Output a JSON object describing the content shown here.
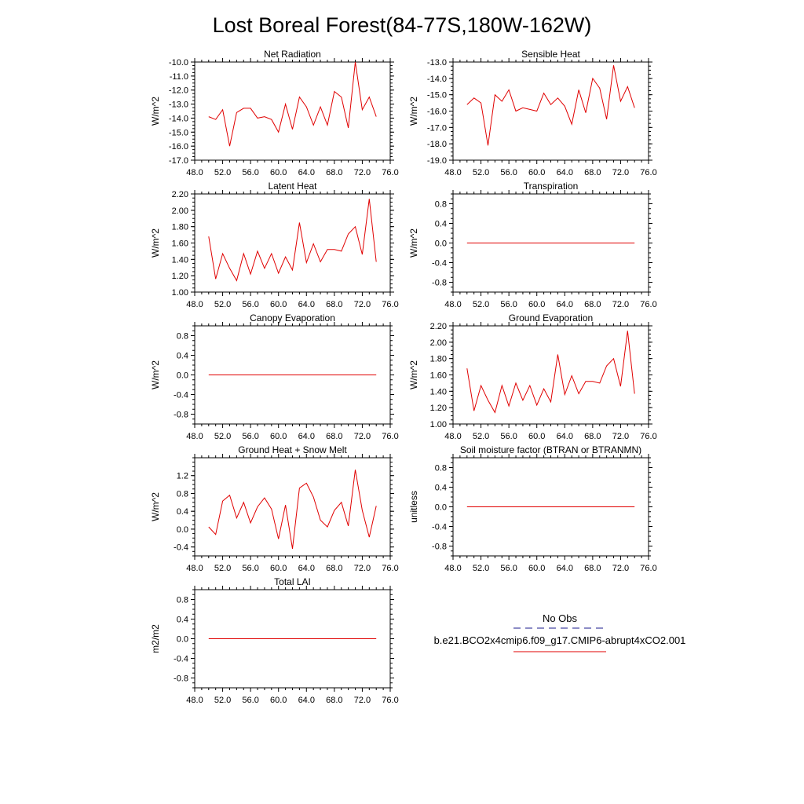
{
  "figure_title": "Lost Boreal Forest(84-77S,180W-162W)",
  "legend": {
    "obs_label": "No Obs",
    "obs_color": "#1a1a8c",
    "model_label": "b.e21.BCO2x4cmip6.f09_g17.CMIP6-abrupt4xCO2.001",
    "model_color": "#e00000"
  },
  "chart_data": [
    {
      "type": "line",
      "title": "Net Radiation",
      "ylabel": "W/m^2",
      "xlim": [
        48,
        76
      ],
      "ylim": [
        -17,
        -10
      ],
      "xticks": [
        48,
        52,
        56,
        60,
        64,
        68,
        72,
        76
      ],
      "xtick_labels": [
        "48.0",
        "52.0",
        "56.0",
        "60.0",
        "64.0",
        "68.0",
        "72.0",
        "76.0"
      ],
      "yticks": [
        -17,
        -16,
        -15,
        -14,
        -13,
        -12,
        -11,
        -10
      ],
      "ytick_labels": [
        "-17.0",
        "-16.0",
        "-15.0",
        "-14.0",
        "-13.0",
        "-12.0",
        "-11.0",
        "-10.0"
      ],
      "x": [
        50,
        51,
        52,
        53,
        54,
        55,
        56,
        57,
        58,
        59,
        60,
        61,
        62,
        63,
        64,
        65,
        66,
        67,
        68,
        69,
        70,
        71,
        72,
        73,
        74
      ],
      "series": [
        {
          "name": "b.e21.BCO2x4cmip6.f09_g17.CMIP6-abrupt4xCO2.001",
          "color": "#e00000",
          "values": [
            -13.9,
            -14.1,
            -13.4,
            -16.0,
            -13.6,
            -13.3,
            -13.3,
            -14.0,
            -13.9,
            -14.1,
            -15.0,
            -13.0,
            -14.8,
            -12.5,
            -13.2,
            -14.5,
            -13.2,
            -14.5,
            -12.1,
            -12.5,
            -14.7,
            -10.0,
            -13.4,
            -12.5,
            -13.9
          ]
        }
      ]
    },
    {
      "type": "line",
      "title": "Sensible Heat",
      "ylabel": "W/m^2",
      "xlim": [
        48,
        76
      ],
      "ylim": [
        -19,
        -13
      ],
      "xticks": [
        48,
        52,
        56,
        60,
        64,
        68,
        72,
        76
      ],
      "xtick_labels": [
        "48.0",
        "52.0",
        "56.0",
        "60.0",
        "64.0",
        "68.0",
        "72.0",
        "76.0"
      ],
      "yticks": [
        -19,
        -18,
        -17,
        -16,
        -15,
        -14,
        -13
      ],
      "ytick_labels": [
        "-19.0",
        "-18.0",
        "-17.0",
        "-16.0",
        "-15.0",
        "-14.0",
        "-13.0"
      ],
      "x": [
        50,
        51,
        52,
        53,
        54,
        55,
        56,
        57,
        58,
        59,
        60,
        61,
        62,
        63,
        64,
        65,
        66,
        67,
        68,
        69,
        70,
        71,
        72,
        73,
        74
      ],
      "series": [
        {
          "name": "b.e21.BCO2x4cmip6.f09_g17.CMIP6-abrupt4xCO2.001",
          "color": "#e00000",
          "values": [
            -15.6,
            -15.2,
            -15.5,
            -18.1,
            -15.0,
            -15.4,
            -14.7,
            -16.0,
            -15.8,
            -15.9,
            -16.0,
            -14.9,
            -15.6,
            -15.2,
            -15.7,
            -16.8,
            -14.7,
            -16.1,
            -14.0,
            -14.6,
            -16.5,
            -13.2,
            -15.4,
            -14.5,
            -15.8
          ]
        }
      ]
    },
    {
      "type": "line",
      "title": "Latent Heat",
      "ylabel": "W/m^2",
      "xlim": [
        48,
        76
      ],
      "ylim": [
        1.0,
        2.2
      ],
      "xticks": [
        48,
        52,
        56,
        60,
        64,
        68,
        72,
        76
      ],
      "xtick_labels": [
        "48.0",
        "52.0",
        "56.0",
        "60.0",
        "64.0",
        "68.0",
        "72.0",
        "76.0"
      ],
      "yticks": [
        1.0,
        1.2,
        1.4,
        1.6,
        1.8,
        2.0,
        2.2
      ],
      "ytick_labels": [
        "1.00",
        "1.20",
        "1.40",
        "1.60",
        "1.80",
        "2.00",
        "2.20"
      ],
      "x": [
        50,
        51,
        52,
        53,
        54,
        55,
        56,
        57,
        58,
        59,
        60,
        61,
        62,
        63,
        64,
        65,
        66,
        67,
        68,
        69,
        70,
        71,
        72,
        73,
        74
      ],
      "series": [
        {
          "name": "b.e21.BCO2x4cmip6.f09_g17.CMIP6-abrupt4xCO2.001",
          "color": "#e00000",
          "values": [
            1.68,
            1.16,
            1.47,
            1.29,
            1.14,
            1.47,
            1.22,
            1.5,
            1.29,
            1.47,
            1.23,
            1.43,
            1.27,
            1.85,
            1.36,
            1.59,
            1.37,
            1.52,
            1.52,
            1.5,
            1.71,
            1.8,
            1.46,
            2.14,
            1.37
          ]
        }
      ]
    },
    {
      "type": "line",
      "title": "Transpiration",
      "ylabel": "W/m^2",
      "xlim": [
        48,
        76
      ],
      "ylim": [
        -1.0,
        1.0
      ],
      "xticks": [
        48,
        52,
        56,
        60,
        64,
        68,
        72,
        76
      ],
      "xtick_labels": [
        "48.0",
        "52.0",
        "56.0",
        "60.0",
        "64.0",
        "68.0",
        "72.0",
        "76.0"
      ],
      "yticks": [
        -0.8,
        -0.4,
        0.0,
        0.4,
        0.8
      ],
      "ytick_labels": [
        "-0.8",
        "-0.4",
        "0.0",
        "0.4",
        "0.8"
      ],
      "x": [
        50,
        51,
        52,
        53,
        54,
        55,
        56,
        57,
        58,
        59,
        60,
        61,
        62,
        63,
        64,
        65,
        66,
        67,
        68,
        69,
        70,
        71,
        72,
        73,
        74
      ],
      "series": [
        {
          "name": "b.e21.BCO2x4cmip6.f09_g17.CMIP6-abrupt4xCO2.001",
          "color": "#e00000",
          "values": [
            0,
            0,
            0,
            0,
            0,
            0,
            0,
            0,
            0,
            0,
            0,
            0,
            0,
            0,
            0,
            0,
            0,
            0,
            0,
            0,
            0,
            0,
            0,
            0,
            0
          ]
        }
      ]
    },
    {
      "type": "line",
      "title": "Canopy Evaporation",
      "ylabel": "W/m^2",
      "xlim": [
        48,
        76
      ],
      "ylim": [
        -1.0,
        1.0
      ],
      "xticks": [
        48,
        52,
        56,
        60,
        64,
        68,
        72,
        76
      ],
      "xtick_labels": [
        "48.0",
        "52.0",
        "56.0",
        "60.0",
        "64.0",
        "68.0",
        "72.0",
        "76.0"
      ],
      "yticks": [
        -0.8,
        -0.4,
        0.0,
        0.4,
        0.8
      ],
      "ytick_labels": [
        "-0.8",
        "-0.4",
        "0.0",
        "0.4",
        "0.8"
      ],
      "x": [
        50,
        51,
        52,
        53,
        54,
        55,
        56,
        57,
        58,
        59,
        60,
        61,
        62,
        63,
        64,
        65,
        66,
        67,
        68,
        69,
        70,
        71,
        72,
        73,
        74
      ],
      "series": [
        {
          "name": "b.e21.BCO2x4cmip6.f09_g17.CMIP6-abrupt4xCO2.001",
          "color": "#e00000",
          "values": [
            0,
            0,
            0,
            0,
            0,
            0,
            0,
            0,
            0,
            0,
            0,
            0,
            0,
            0,
            0,
            0,
            0,
            0,
            0,
            0,
            0,
            0,
            0,
            0,
            0
          ]
        }
      ]
    },
    {
      "type": "line",
      "title": "Ground Evaporation",
      "ylabel": "W/m^2",
      "xlim": [
        48,
        76
      ],
      "ylim": [
        1.0,
        2.2
      ],
      "xticks": [
        48,
        52,
        56,
        60,
        64,
        68,
        72,
        76
      ],
      "xtick_labels": [
        "48.0",
        "52.0",
        "56.0",
        "60.0",
        "64.0",
        "68.0",
        "72.0",
        "76.0"
      ],
      "yticks": [
        1.0,
        1.2,
        1.4,
        1.6,
        1.8,
        2.0,
        2.2
      ],
      "ytick_labels": [
        "1.00",
        "1.20",
        "1.40",
        "1.60",
        "1.80",
        "2.00",
        "2.20"
      ],
      "x": [
        50,
        51,
        52,
        53,
        54,
        55,
        56,
        57,
        58,
        59,
        60,
        61,
        62,
        63,
        64,
        65,
        66,
        67,
        68,
        69,
        70,
        71,
        72,
        73,
        74
      ],
      "series": [
        {
          "name": "b.e21.BCO2x4cmip6.f09_g17.CMIP6-abrupt4xCO2.001",
          "color": "#e00000",
          "values": [
            1.68,
            1.16,
            1.47,
            1.29,
            1.14,
            1.47,
            1.22,
            1.5,
            1.29,
            1.47,
            1.23,
            1.43,
            1.27,
            1.85,
            1.36,
            1.59,
            1.37,
            1.52,
            1.52,
            1.5,
            1.71,
            1.8,
            1.46,
            2.14,
            1.37
          ]
        }
      ]
    },
    {
      "type": "line",
      "title": "Ground Heat + Snow Melt",
      "ylabel": "W/m^2",
      "xlim": [
        48,
        76
      ],
      "ylim": [
        -0.6,
        1.6
      ],
      "xticks": [
        48,
        52,
        56,
        60,
        64,
        68,
        72,
        76
      ],
      "xtick_labels": [
        "48.0",
        "52.0",
        "56.0",
        "60.0",
        "64.0",
        "68.0",
        "72.0",
        "76.0"
      ],
      "yticks": [
        -0.4,
        0.0,
        0.4,
        0.8,
        1.2
      ],
      "ytick_labels": [
        "-0.4",
        "0.0",
        "0.4",
        "0.8",
        "1.2"
      ],
      "x": [
        50,
        51,
        52,
        53,
        54,
        55,
        56,
        57,
        58,
        59,
        60,
        61,
        62,
        63,
        64,
        65,
        66,
        67,
        68,
        69,
        70,
        71,
        72,
        73,
        74
      ],
      "series": [
        {
          "name": "b.e21.BCO2x4cmip6.f09_g17.CMIP6-abrupt4xCO2.001",
          "color": "#e00000",
          "values": [
            0.05,
            -0.12,
            0.63,
            0.76,
            0.25,
            0.6,
            0.14,
            0.5,
            0.7,
            0.45,
            -0.22,
            0.54,
            -0.44,
            0.92,
            1.03,
            0.72,
            0.2,
            0.05,
            0.42,
            0.6,
            0.07,
            1.33,
            0.42,
            -0.18,
            0.52
          ]
        }
      ]
    },
    {
      "type": "line",
      "title": "Soil moisture factor (BTRAN or BTRANMN)",
      "ylabel": "unitless",
      "xlim": [
        48,
        76
      ],
      "ylim": [
        -1.0,
        1.0
      ],
      "xticks": [
        48,
        52,
        56,
        60,
        64,
        68,
        72,
        76
      ],
      "xtick_labels": [
        "48.0",
        "52.0",
        "56.0",
        "60.0",
        "64.0",
        "68.0",
        "72.0",
        "76.0"
      ],
      "yticks": [
        -0.8,
        -0.4,
        0.0,
        0.4,
        0.8
      ],
      "ytick_labels": [
        "-0.8",
        "-0.4",
        "0.0",
        "0.4",
        "0.8"
      ],
      "x": [
        50,
        51,
        52,
        53,
        54,
        55,
        56,
        57,
        58,
        59,
        60,
        61,
        62,
        63,
        64,
        65,
        66,
        67,
        68,
        69,
        70,
        71,
        72,
        73,
        74
      ],
      "series": [
        {
          "name": "b.e21.BCO2x4cmip6.f09_g17.CMIP6-abrupt4xCO2.001",
          "color": "#e00000",
          "values": [
            0,
            0,
            0,
            0,
            0,
            0,
            0,
            0,
            0,
            0,
            0,
            0,
            0,
            0,
            0,
            0,
            0,
            0,
            0,
            0,
            0,
            0,
            0,
            0,
            0
          ]
        }
      ]
    },
    {
      "type": "line",
      "title": "Total LAI",
      "ylabel": "m2/m2",
      "xlim": [
        48,
        76
      ],
      "ylim": [
        -1.0,
        1.0
      ],
      "xticks": [
        48,
        52,
        56,
        60,
        64,
        68,
        72,
        76
      ],
      "xtick_labels": [
        "48.0",
        "52.0",
        "56.0",
        "60.0",
        "64.0",
        "68.0",
        "72.0",
        "76.0"
      ],
      "yticks": [
        -0.8,
        -0.4,
        0.0,
        0.4,
        0.8
      ],
      "ytick_labels": [
        "-0.8",
        "-0.4",
        "0.0",
        "0.4",
        "0.8"
      ],
      "x": [
        50,
        51,
        52,
        53,
        54,
        55,
        56,
        57,
        58,
        59,
        60,
        61,
        62,
        63,
        64,
        65,
        66,
        67,
        68,
        69,
        70,
        71,
        72,
        73,
        74
      ],
      "series": [
        {
          "name": "b.e21.BCO2x4cmip6.f09_g17.CMIP6-abrupt4xCO2.001",
          "color": "#e00000",
          "values": [
            0,
            0,
            0,
            0,
            0,
            0,
            0,
            0,
            0,
            0,
            0,
            0,
            0,
            0,
            0,
            0,
            0,
            0,
            0,
            0,
            0,
            0,
            0,
            0,
            0
          ]
        }
      ]
    }
  ]
}
